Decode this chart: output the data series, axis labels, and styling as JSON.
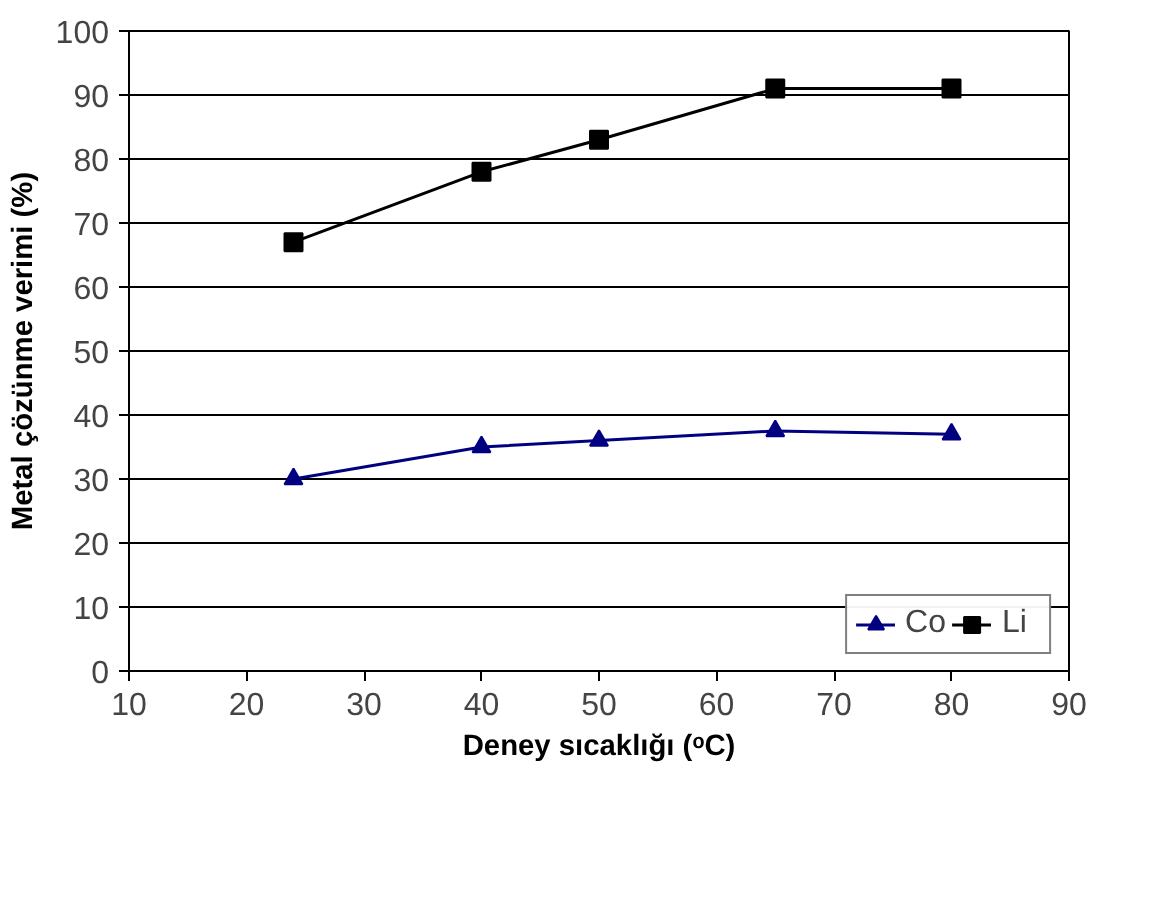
{
  "chart_data": {
    "type": "line",
    "xlabel": "Deney sıcaklığı (ᵒC)",
    "ylabel": "Metal çözünme verimi (%)",
    "x": [
      24,
      40,
      50,
      65,
      80
    ],
    "series": [
      {
        "name": "Co",
        "color": "#000080",
        "values": [
          30,
          35,
          36,
          37.5,
          37
        ],
        "marker": "triangle"
      },
      {
        "name": "Li",
        "color": "#000000",
        "values": [
          67,
          78,
          83,
          91,
          91
        ],
        "marker": "square"
      }
    ],
    "xlim": [
      10,
      90
    ],
    "xticks": [
      10,
      20,
      30,
      40,
      50,
      60,
      70,
      80,
      90
    ],
    "ylim": [
      0,
      100
    ],
    "yticks": [
      0,
      10,
      20,
      30,
      40,
      50,
      60,
      70,
      80,
      90,
      100
    ],
    "grid": "y",
    "legend": "bottom right",
    "line_style": "solid"
  }
}
